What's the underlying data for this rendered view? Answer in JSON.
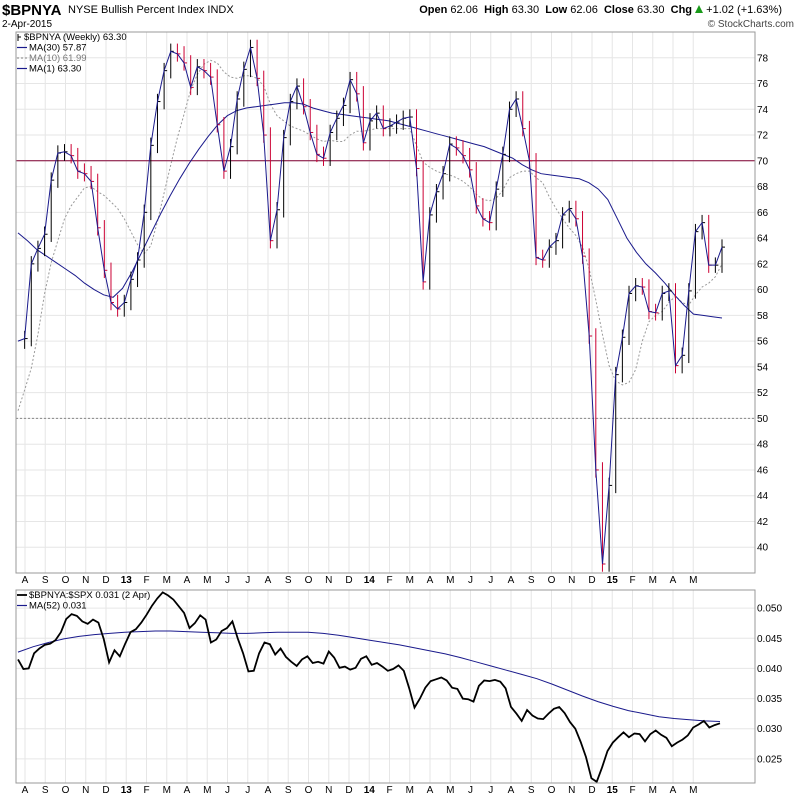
{
  "header": {
    "symbol": "$BPNYA",
    "name": "NYSE Bullish Percent Index",
    "exchange": "INDX",
    "date": "2-Apr-2015",
    "open_label": "Open",
    "open": "62.06",
    "high_label": "High",
    "high": "63.30",
    "low_label": "Low",
    "low": "62.06",
    "close_label": "Close",
    "close": "63.30",
    "chg_label": "Chg",
    "chg": "+1.02 (+1.63%)",
    "chg_icon": "up-triangle-icon",
    "copyright": "© StockCharts.com"
  },
  "colors": {
    "up_bar": "#000000",
    "down_bar": "#cc0033",
    "ma30": "#1a1a8c",
    "ma10": "#999999",
    "ma1": "#1a1a8c",
    "ref_line": "#800033",
    "grid": "#e6e6e6"
  },
  "x_axis_labels": [
    "A",
    "S",
    "O",
    "N",
    "D",
    "13",
    "F",
    "M",
    "A",
    "M",
    "J",
    "J",
    "A",
    "S",
    "O",
    "N",
    "D",
    "14",
    "F",
    "M",
    "A",
    "M",
    "J",
    "J",
    "A",
    "S",
    "O",
    "N",
    "D",
    "15",
    "F",
    "M",
    "A",
    "M"
  ],
  "chart_data": [
    {
      "type": "line",
      "title": "$BPNYA NYSE Bullish Percent Index INDX",
      "legend": [
        {
          "key": "price",
          "text": "$BPNYA (Weekly) 63.30"
        },
        {
          "key": "ma30",
          "text": "MA(30) 57.87"
        },
        {
          "key": "ma10",
          "text": "MA(10) 61.99"
        },
        {
          "key": "ma1",
          "text": "MA(1) 63.30"
        }
      ],
      "legend_position": "top-left",
      "ylim": [
        38,
        80
      ],
      "yticks": [
        40,
        42,
        44,
        46,
        48,
        50,
        52,
        54,
        56,
        58,
        60,
        62,
        64,
        66,
        68,
        70,
        72,
        74,
        76,
        78
      ],
      "reference_lines": [
        70,
        50
      ],
      "x_unit": "weeks (2012 W31 – 2015 W14)",
      "ma1_series": [
        56.0,
        56.2,
        62.0,
        63.2,
        64.3,
        68.5,
        70.6,
        70.7,
        70.4,
        69.2,
        69.0,
        68.4,
        64.8,
        61.5,
        59.0,
        58.5,
        59.0,
        60.8,
        62.3,
        66.0,
        71.2,
        74.6,
        77.0,
        78.5,
        78.3,
        77.6,
        75.7,
        77.3,
        77.0,
        76.5,
        72.8,
        69.2,
        71.1,
        74.8,
        77.1,
        78.8,
        76.4,
        72.0,
        63.8,
        66.2,
        71.8,
        74.6,
        75.8,
        74.2,
        72.2,
        70.5,
        70.2,
        72.2,
        73.3,
        74.3,
        76.3,
        75.2,
        71.4,
        73.1,
        73.7,
        72.5,
        72.7,
        73.0,
        73.3,
        73.4,
        69.4,
        60.6,
        65.8,
        67.6,
        69.0,
        71.3,
        71.0,
        70.4,
        69.3,
        66.5,
        65.5,
        65.2,
        67.8,
        70.5,
        74.0,
        74.8,
        72.5,
        70.0,
        62.5,
        62.3,
        63.3,
        63.8,
        65.8,
        66.3,
        65.5,
        62.6,
        56.4,
        46.0,
        38.7,
        44.8,
        53.4,
        56.3,
        59.7,
        60.3,
        60.2,
        58.3,
        58.2,
        59.7,
        59.9,
        54.1,
        54.9,
        59.9,
        64.5,
        65.2,
        61.9,
        61.9,
        63.3
      ],
      "ma30_series": [
        64.4,
        63.8,
        63.1,
        62.6,
        62.1,
        61.6,
        61.1,
        60.5,
        60.0,
        59.6,
        59.4,
        60.1,
        61.4,
        62.9,
        64.4,
        65.9,
        67.3,
        68.6,
        69.8,
        70.9,
        71.9,
        72.8,
        73.5,
        73.9,
        74.1,
        74.2,
        74.3,
        74.4,
        74.5,
        74.5,
        74.4,
        74.1,
        73.9,
        73.7,
        73.6,
        73.5,
        73.4,
        73.3,
        73.2,
        73.1,
        72.9,
        72.7,
        72.5,
        72.3,
        72.1,
        71.9,
        71.7,
        71.5,
        71.3,
        71.1,
        70.8,
        70.5,
        70.2,
        69.7,
        69.3,
        69.0,
        68.9,
        68.8,
        68.7,
        68.6,
        68.3,
        67.8,
        67.0,
        65.5,
        64.0,
        62.9,
        62.0,
        61.3,
        60.5,
        59.6,
        58.8,
        58.1,
        58.0,
        57.9,
        57.8
      ],
      "ma10_series": [
        50.6,
        52.2,
        53.9,
        56.5,
        59.7,
        62.1,
        63.8,
        65.5,
        66.5,
        67.2,
        67.9,
        68.0,
        67.6,
        67.3,
        66.8,
        66.3,
        65.5,
        64.5,
        63.5,
        62.8,
        63.4,
        65.3,
        67.5,
        69.7,
        71.8,
        73.6,
        75.5,
        76.7,
        77.5,
        77.8,
        77.6,
        76.9,
        76.5,
        76.4,
        76.6,
        76.6,
        76.4,
        75.8,
        74.4,
        73.5,
        73.1,
        72.7,
        72.5,
        72.3,
        72.0,
        71.7,
        71.5,
        71.6,
        71.5,
        71.5,
        72.0,
        72.3,
        72.3,
        72.4,
        72.5,
        72.5,
        72.5,
        72.5,
        72.5,
        72.5,
        71.2,
        69.9,
        69.5,
        69.2,
        69.0,
        68.9,
        68.7,
        68.4,
        68.0,
        67.4,
        67.0,
        66.9,
        67.1,
        67.7,
        68.7,
        69.0,
        69.2,
        69.2,
        68.7,
        68.3,
        67.2,
        66.3,
        65.5,
        64.8,
        64.2,
        63.3,
        61.6,
        59.2,
        56.5,
        54.1,
        52.9,
        52.6,
        52.8,
        53.8,
        56.0,
        57.5,
        58.0,
        58.3,
        59.0,
        59.5,
        59.0,
        58.8,
        59.6,
        60.2,
        60.5,
        61.0,
        62.0
      ]
    },
    {
      "type": "line",
      "title": "$BPNYA:$SPX 0.031 (2 Apr)",
      "legend": [
        {
          "key": "ratio",
          "text": "$BPNYA:$SPX 0.031 (2 Apr)"
        },
        {
          "key": "ma52",
          "text": "MA(52) 0.031"
        }
      ],
      "legend_position": "top-left",
      "ylim": [
        0.021,
        0.053
      ],
      "yticks": [
        0.025,
        0.03,
        0.035,
        0.04,
        0.045,
        0.05
      ],
      "ratio_series": [
        0.0415,
        0.0399,
        0.04,
        0.0425,
        0.0433,
        0.0439,
        0.0441,
        0.0447,
        0.046,
        0.0482,
        0.049,
        0.0487,
        0.0478,
        0.0474,
        0.0481,
        0.0476,
        0.0449,
        0.041,
        0.043,
        0.042,
        0.0441,
        0.046,
        0.0465,
        0.0476,
        0.0489,
        0.0504,
        0.0516,
        0.0526,
        0.0521,
        0.0514,
        0.0503,
        0.0492,
        0.0467,
        0.0475,
        0.0488,
        0.0481,
        0.0443,
        0.0448,
        0.0462,
        0.0467,
        0.0478,
        0.045,
        0.0425,
        0.0395,
        0.0396,
        0.0425,
        0.0443,
        0.044,
        0.0423,
        0.0433,
        0.0419,
        0.0411,
        0.0404,
        0.0415,
        0.042,
        0.0409,
        0.0411,
        0.0408,
        0.0428,
        0.0418,
        0.0401,
        0.0403,
        0.0398,
        0.0401,
        0.0416,
        0.042,
        0.0406,
        0.0409,
        0.0403,
        0.0396,
        0.0399,
        0.0405,
        0.0396,
        0.0367,
        0.0335,
        0.035,
        0.0368,
        0.0379,
        0.0382,
        0.0385,
        0.038,
        0.0368,
        0.0366,
        0.035,
        0.0349,
        0.0345,
        0.0371,
        0.038,
        0.0379,
        0.0381,
        0.0378,
        0.0367,
        0.0336,
        0.0325,
        0.0313,
        0.0331,
        0.0322,
        0.0317,
        0.0316,
        0.0325,
        0.0333,
        0.0336,
        0.0326,
        0.0311,
        0.03,
        0.0278,
        0.0253,
        0.0218,
        0.0212,
        0.0236,
        0.0263,
        0.0277,
        0.0286,
        0.0294,
        0.0286,
        0.0292,
        0.0291,
        0.0279,
        0.0291,
        0.0297,
        0.029,
        0.0285,
        0.0271,
        0.0277,
        0.0282,
        0.0289,
        0.0302,
        0.0307,
        0.0313,
        0.0302,
        0.0306,
        0.0309
      ],
      "ma52_series": [
        0.0427,
        0.0436,
        0.0443,
        0.0449,
        0.0453,
        0.0456,
        0.0458,
        0.046,
        0.0461,
        0.0462,
        0.0462,
        0.0461,
        0.046,
        0.0459,
        0.0458,
        0.0458,
        0.0459,
        0.046,
        0.046,
        0.046,
        0.0458,
        0.0455,
        0.0451,
        0.0447,
        0.0443,
        0.0439,
        0.0434,
        0.0429,
        0.0424,
        0.0418,
        0.0411,
        0.0404,
        0.0397,
        0.039,
        0.0383,
        0.0374,
        0.0364,
        0.0354,
        0.0345,
        0.0337,
        0.033,
        0.0325,
        0.032,
        0.0317,
        0.0315,
        0.0313,
        0.0312
      ]
    }
  ]
}
